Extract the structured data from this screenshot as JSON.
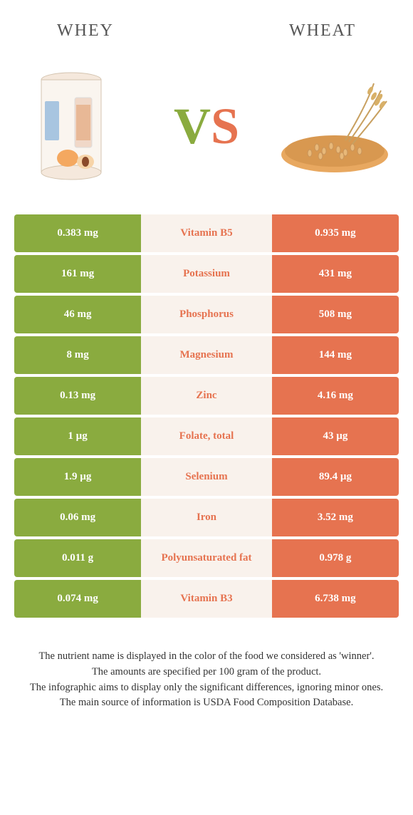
{
  "header": {
    "left": "WHEY",
    "right": "WHEAT"
  },
  "vs": {
    "v": "V",
    "s": "S"
  },
  "colors": {
    "green": "#8aab3f",
    "orange": "#e67350",
    "midbg": "#f9f2ec",
    "text": "#333333"
  },
  "rows": [
    {
      "left": "0.383 mg",
      "mid": "Vitamin B5",
      "right": "0.935 mg",
      "winner": "right"
    },
    {
      "left": "161 mg",
      "mid": "Potassium",
      "right": "431 mg",
      "winner": "right"
    },
    {
      "left": "46 mg",
      "mid": "Phosphorus",
      "right": "508 mg",
      "winner": "right"
    },
    {
      "left": "8 mg",
      "mid": "Magnesium",
      "right": "144 mg",
      "winner": "right"
    },
    {
      "left": "0.13 mg",
      "mid": "Zinc",
      "right": "4.16 mg",
      "winner": "right"
    },
    {
      "left": "1 µg",
      "mid": "Folate, total",
      "right": "43 µg",
      "winner": "right"
    },
    {
      "left": "1.9 µg",
      "mid": "Selenium",
      "right": "89.4 µg",
      "winner": "right"
    },
    {
      "left": "0.06 mg",
      "mid": "Iron",
      "right": "3.52 mg",
      "winner": "right"
    },
    {
      "left": "0.011 g",
      "mid": "Polyunsaturated fat",
      "right": "0.978 g",
      "winner": "right"
    },
    {
      "left": "0.074 mg",
      "mid": "Vitamin B3",
      "right": "6.738 mg",
      "winner": "right"
    }
  ],
  "footer": {
    "line1": "The nutrient name is displayed in the color of the food we considered as 'winner'.",
    "line2": "The amounts are specified per 100 gram of the product.",
    "line3": "The infographic aims to display only the significant differences, ignoring minor ones.",
    "line4": "The main source of information is USDA Food Composition Database."
  }
}
